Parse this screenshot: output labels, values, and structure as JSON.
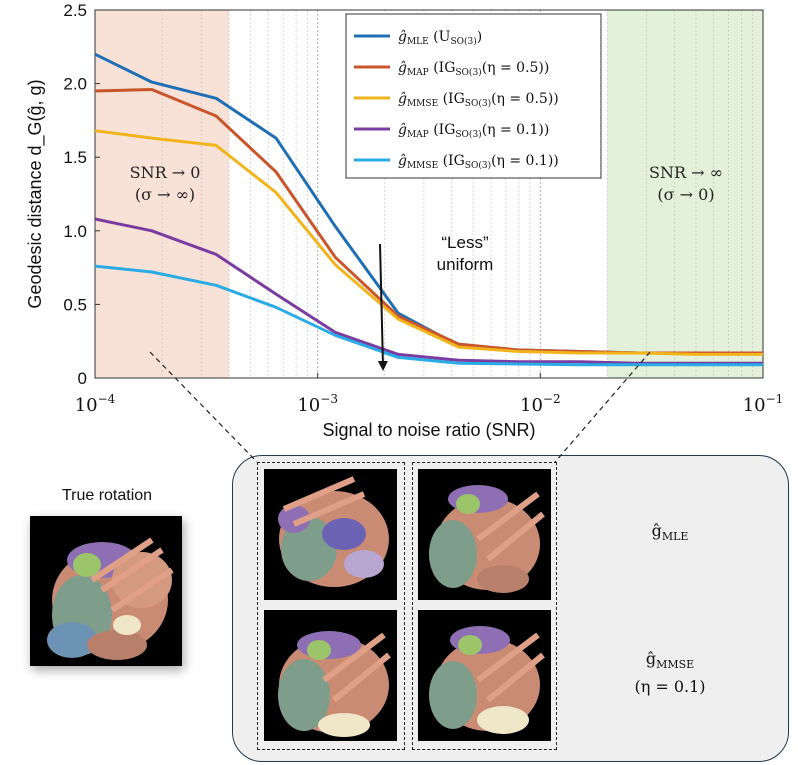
{
  "chart_data": {
    "type": "line",
    "xscale": "log",
    "xlim": [
      0.0001,
      0.1
    ],
    "ylim": [
      0,
      2.5
    ],
    "xlabel": "Signal to noise ratio (SNR)",
    "ylabel": "Geodesic distance d_G(ĝ, g)",
    "x_ticks": [
      "10^-4",
      "10^-3",
      "10^-2",
      "10^-1"
    ],
    "y_ticks": [
      "0",
      "0.5",
      "1.0",
      "1.5",
      "2.0",
      "2.5"
    ],
    "x": [
      0.0001,
      0.00018,
      0.00035,
      0.00065,
      0.0012,
      0.0023,
      0.0043,
      0.008,
      0.015,
      0.028,
      0.05,
      0.1
    ],
    "series": [
      {
        "name": "ĝ_MLE (U_SO(3))",
        "color": "#1f6fb4",
        "values": [
          2.2,
          2.01,
          1.9,
          1.63,
          1.03,
          0.44,
          0.22,
          0.19,
          0.18,
          0.17,
          0.17,
          0.17
        ]
      },
      {
        "name": "ĝ_MAP (IG_SO(3)(η = 0.5))",
        "color": "#c9562a",
        "values": [
          1.95,
          1.96,
          1.78,
          1.4,
          0.82,
          0.42,
          0.23,
          0.19,
          0.18,
          0.17,
          0.17,
          0.17
        ]
      },
      {
        "name": "ĝ_MMSE (IG_SO(3)(η = 0.5))",
        "color": "#f2b41c",
        "values": [
          1.68,
          1.63,
          1.58,
          1.26,
          0.77,
          0.4,
          0.21,
          0.18,
          0.17,
          0.17,
          0.16,
          0.16
        ]
      },
      {
        "name": "ĝ_MAP (IG_SO(3)(η = 0.1))",
        "color": "#7a3ca0",
        "values": [
          1.08,
          1.0,
          0.84,
          0.57,
          0.31,
          0.16,
          0.12,
          0.11,
          0.11,
          0.1,
          0.1,
          0.1
        ]
      },
      {
        "name": "ĝ_MMSE (IG_SO(3)(η = 0.1))",
        "color": "#2aabe6",
        "values": [
          0.76,
          0.72,
          0.63,
          0.48,
          0.29,
          0.14,
          0.1,
          0.095,
          0.09,
          0.09,
          0.09,
          0.09
        ]
      }
    ],
    "shaded_regions": [
      {
        "from": 0.0001,
        "to": 0.0004,
        "color": "#f8e2d8"
      },
      {
        "from": 0.02,
        "to": 0.1,
        "color": "#e3f1da"
      }
    ],
    "annotations": {
      "low_snr": [
        "SNR → 0",
        "(σ → ∞)"
      ],
      "high_snr": [
        "SNR → ∞",
        "(σ → 0)"
      ],
      "less_uniform": [
        "“Less”",
        "uniform"
      ]
    }
  },
  "legend": [
    {
      "label": "ĝ",
      "sub": "MLE",
      "rest": " (U",
      "rest_sub": "SO(3)",
      "tail": ")"
    },
    {
      "label": "ĝ",
      "sub": "MAP",
      "rest": " (IG",
      "rest_sub": "SO(3)",
      "tail": "(η = 0.5))"
    },
    {
      "label": "ĝ",
      "sub": "MMSE",
      "rest": " (IG",
      "rest_sub": "SO(3)",
      "tail": "(η = 0.5))"
    },
    {
      "label": "ĝ",
      "sub": "MAP",
      "rest": " (IG",
      "rest_sub": "SO(3)",
      "tail": "(η = 0.1))"
    },
    {
      "label": "ĝ",
      "sub": "MMSE",
      "rest": " (IG",
      "rest_sub": "SO(3)",
      "tail": "(η = 0.1))"
    }
  ],
  "bottom": {
    "true_rotation_title": "True rotation",
    "row1_label_main": "ĝ",
    "row1_label_sub": "MLE",
    "row2_label_main": "ĝ",
    "row2_label_sub": "MMSE",
    "row2_label_eta": "(η = 0.1)"
  }
}
